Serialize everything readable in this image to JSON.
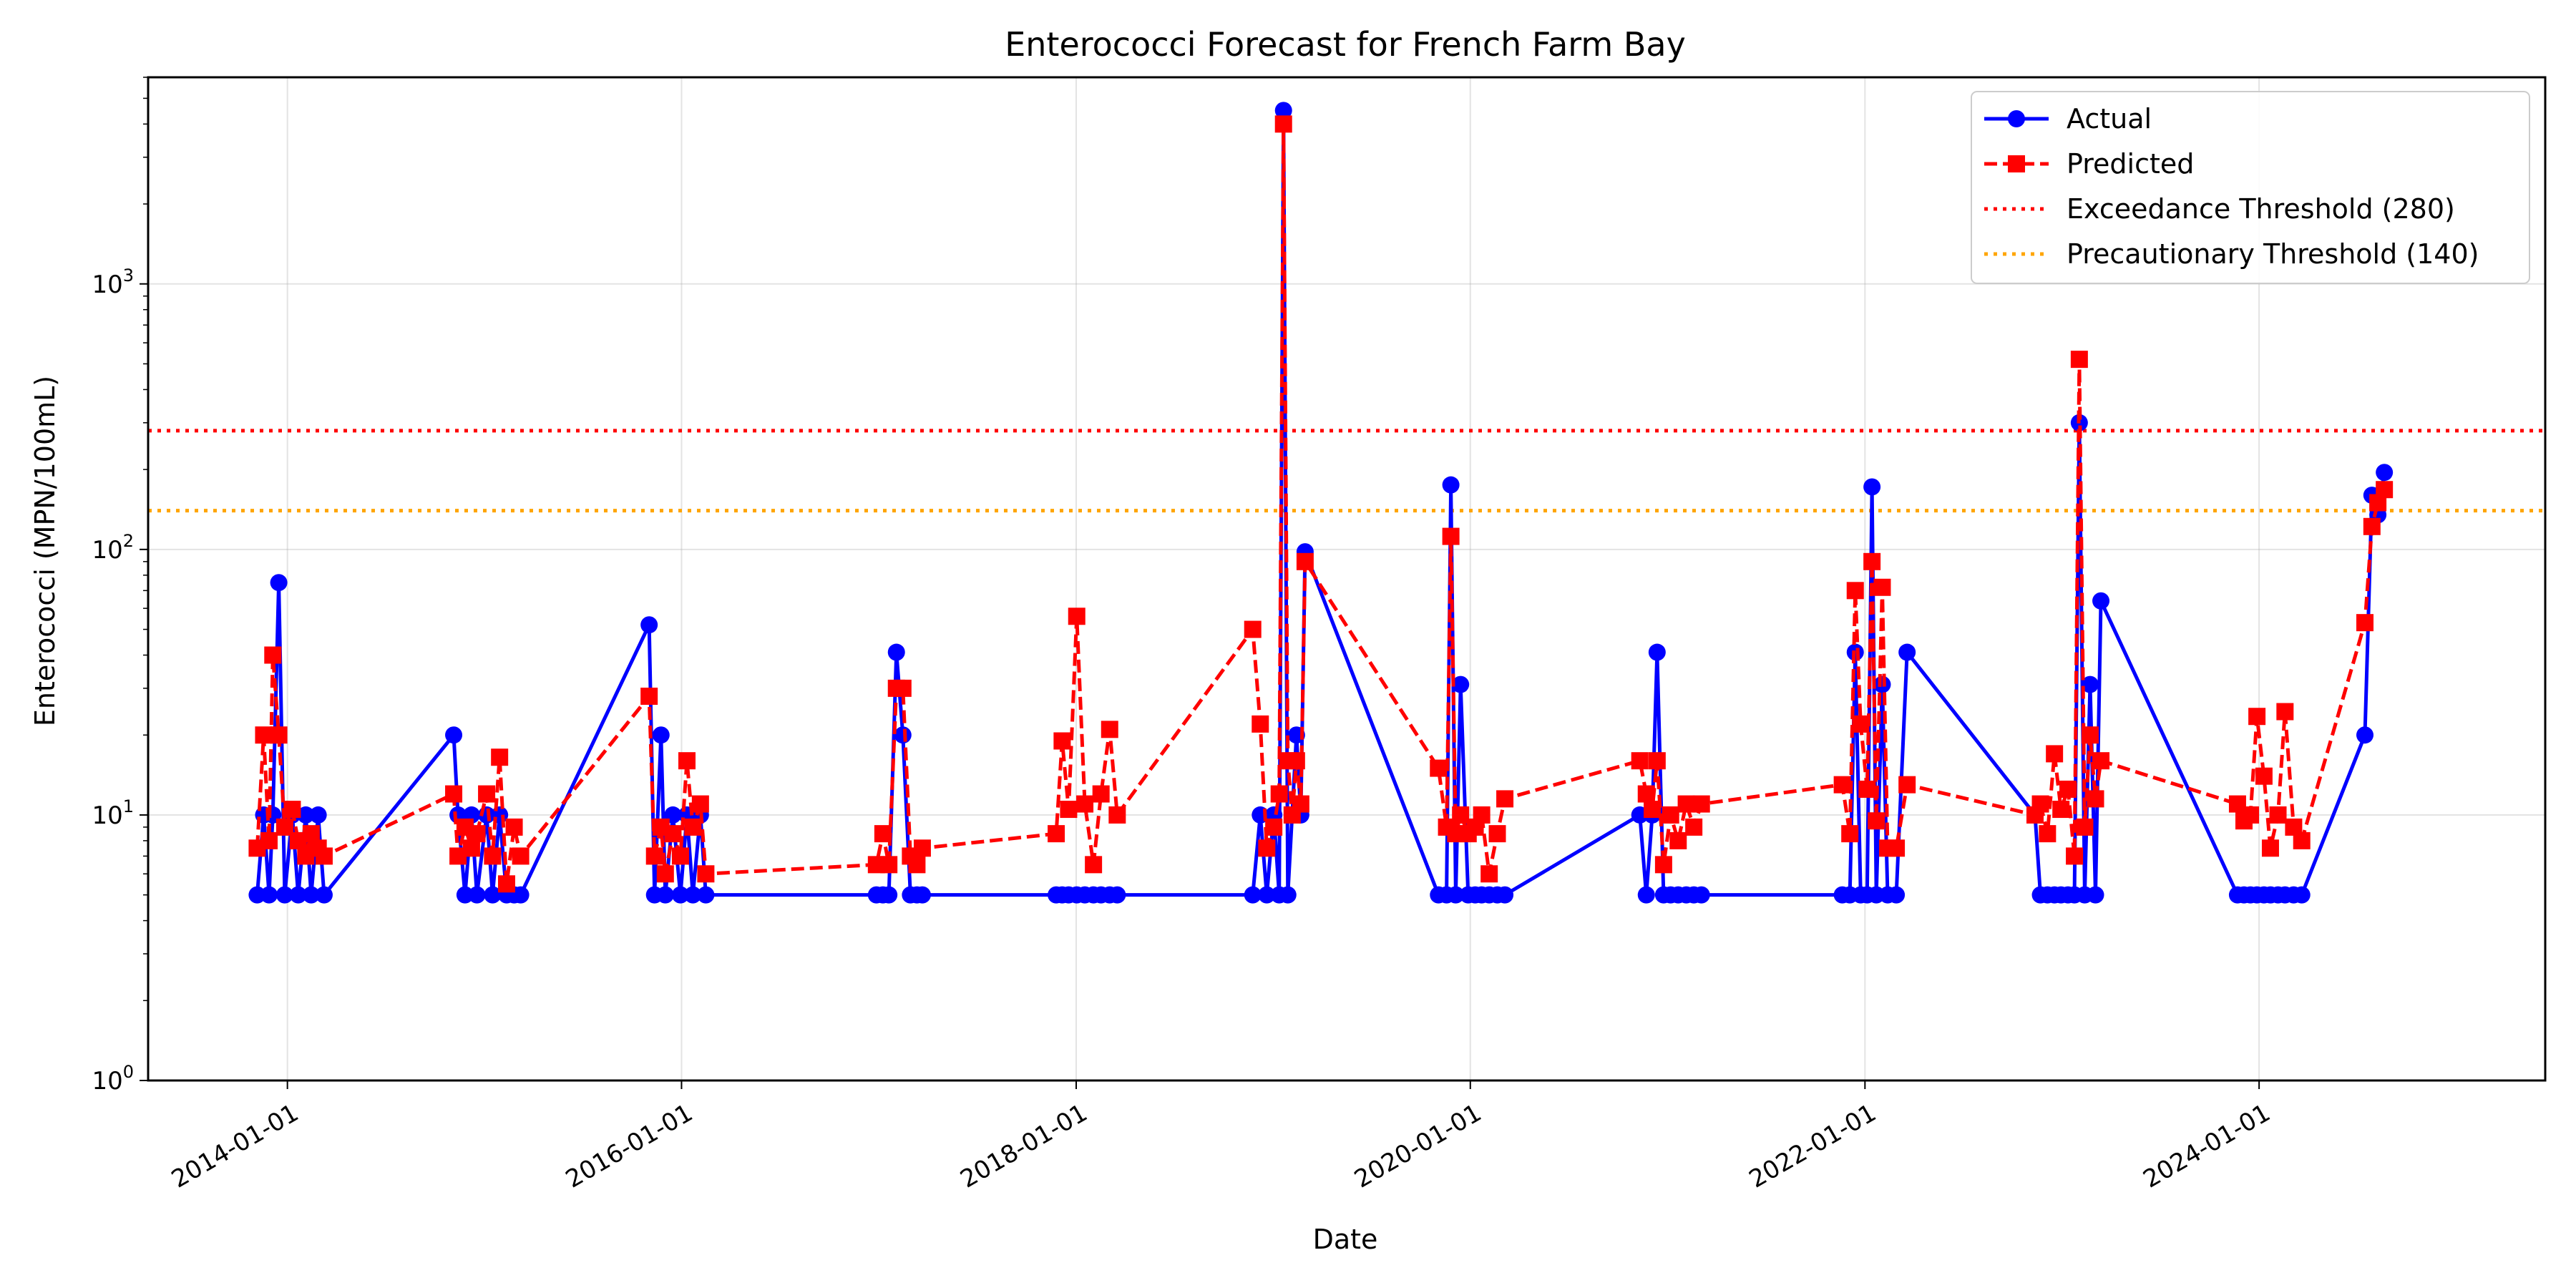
{
  "chart_data": {
    "type": "line",
    "title": "Enterococci Forecast for French Farm Bay",
    "xlabel": "Date",
    "ylabel": "Enterococci (MPN/100mL)",
    "yscale": "log",
    "ylim": [
      1,
      6000
    ],
    "xlim": [
      "2013-04-18",
      "2025-06-14"
    ],
    "grid": true,
    "legend_position": "upper right",
    "x_ticks": [
      "2014-01-01",
      "2016-01-01",
      "2018-01-01",
      "2020-01-01",
      "2022-01-01",
      "2024-01-01"
    ],
    "y_ticks": [
      {
        "value": 1,
        "base": "10",
        "exp": "0"
      },
      {
        "value": 10,
        "base": "10",
        "exp": "1"
      },
      {
        "value": 100,
        "base": "10",
        "exp": "2"
      },
      {
        "value": 1000,
        "base": "10",
        "exp": "3"
      }
    ],
    "thresholds": [
      {
        "name": "Exceedance Threshold (280)",
        "value": 280,
        "color": "#ff0000",
        "style": "dotted"
      },
      {
        "name": "Precautionary Threshold (140)",
        "value": 140,
        "color": "#ffa500",
        "style": "dotted"
      }
    ],
    "series": [
      {
        "name": "Actual",
        "color": "#0000ff",
        "marker": "circle",
        "line": "solid",
        "points": [
          [
            "2013-11-06",
            5
          ],
          [
            "2013-11-18",
            10
          ],
          [
            "2013-11-28",
            5
          ],
          [
            "2013-12-05",
            10
          ],
          [
            "2013-12-16",
            75
          ],
          [
            "2013-12-27",
            5
          ],
          [
            "2014-01-10",
            10
          ],
          [
            "2014-01-21",
            5
          ],
          [
            "2014-02-04",
            10
          ],
          [
            "2014-02-14",
            5
          ],
          [
            "2014-02-27",
            10
          ],
          [
            "2014-03-10",
            5
          ],
          [
            "2014-11-05",
            20
          ],
          [
            "2014-11-13",
            10
          ],
          [
            "2014-11-26",
            5
          ],
          [
            "2014-12-08",
            10
          ],
          [
            "2014-12-18",
            5
          ],
          [
            "2015-01-05",
            10
          ],
          [
            "2015-01-16",
            5
          ],
          [
            "2015-01-29",
            10
          ],
          [
            "2015-02-11",
            5
          ],
          [
            "2015-02-25",
            5
          ],
          [
            "2015-03-09",
            5
          ],
          [
            "2015-11-02",
            52
          ],
          [
            "2015-11-12",
            5
          ],
          [
            "2015-11-24",
            20
          ],
          [
            "2015-12-02",
            5
          ],
          [
            "2015-12-16",
            10
          ],
          [
            "2015-12-30",
            5
          ],
          [
            "2016-01-11",
            10
          ],
          [
            "2016-01-22",
            5
          ],
          [
            "2016-02-05",
            10
          ],
          [
            "2016-02-15",
            5
          ],
          [
            "2016-12-27",
            5
          ],
          [
            "2017-01-08",
            5
          ],
          [
            "2017-01-19",
            5
          ],
          [
            "2017-02-02",
            41
          ],
          [
            "2017-02-14",
            20
          ],
          [
            "2017-02-28",
            5
          ],
          [
            "2017-03-12",
            5
          ],
          [
            "2017-03-22",
            5
          ],
          [
            "2017-11-25",
            5
          ],
          [
            "2017-12-06",
            5
          ],
          [
            "2017-12-18",
            5
          ],
          [
            "2018-01-02",
            5
          ],
          [
            "2018-01-17",
            5
          ],
          [
            "2018-02-02",
            5
          ],
          [
            "2018-02-16",
            5
          ],
          [
            "2018-03-04",
            5
          ],
          [
            "2018-03-18",
            5
          ],
          [
            "2018-11-24",
            5
          ],
          [
            "2018-12-08",
            10
          ],
          [
            "2018-12-20",
            5
          ],
          [
            "2019-01-02",
            10
          ],
          [
            "2019-01-12",
            5
          ],
          [
            "2019-01-20",
            4500
          ],
          [
            "2019-01-28",
            5
          ],
          [
            "2019-02-05",
            10
          ],
          [
            "2019-02-13",
            20
          ],
          [
            "2019-02-21",
            10
          ],
          [
            "2019-03-01",
            98
          ],
          [
            "2019-11-03",
            5
          ],
          [
            "2019-11-18",
            5
          ],
          [
            "2019-11-26",
            175
          ],
          [
            "2019-12-05",
            5
          ],
          [
            "2019-12-14",
            31
          ],
          [
            "2019-12-28",
            5
          ],
          [
            "2020-01-10",
            5
          ],
          [
            "2020-01-22",
            5
          ],
          [
            "2020-02-05",
            5
          ],
          [
            "2020-02-20",
            5
          ],
          [
            "2020-03-05",
            5
          ],
          [
            "2020-11-10",
            10
          ],
          [
            "2020-11-22",
            5
          ],
          [
            "2020-12-03",
            10
          ],
          [
            "2020-12-12",
            41
          ],
          [
            "2020-12-24",
            5
          ],
          [
            "2021-01-06",
            5
          ],
          [
            "2021-01-20",
            5
          ],
          [
            "2021-02-04",
            5
          ],
          [
            "2021-02-18",
            5
          ],
          [
            "2021-03-04",
            5
          ],
          [
            "2021-11-20",
            5
          ],
          [
            "2021-12-04",
            5
          ],
          [
            "2021-12-14",
            41
          ],
          [
            "2021-12-24",
            5
          ],
          [
            "2022-01-05",
            5
          ],
          [
            "2022-01-14",
            172
          ],
          [
            "2022-01-22",
            5
          ],
          [
            "2022-02-02",
            31
          ],
          [
            "2022-02-12",
            5
          ],
          [
            "2022-02-28",
            5
          ],
          [
            "2022-03-20",
            41
          ],
          [
            "2022-11-12",
            10
          ],
          [
            "2022-11-22",
            5
          ],
          [
            "2022-12-05",
            5
          ],
          [
            "2022-12-18",
            5
          ],
          [
            "2022-12-30",
            5
          ],
          [
            "2023-01-12",
            5
          ],
          [
            "2023-01-24",
            5
          ],
          [
            "2023-02-02",
            300
          ],
          [
            "2023-02-12",
            5
          ],
          [
            "2023-02-22",
            31
          ],
          [
            "2023-03-04",
            5
          ],
          [
            "2023-03-14",
            64
          ],
          [
            "2023-11-22",
            5
          ],
          [
            "2023-12-04",
            5
          ],
          [
            "2023-12-16",
            5
          ],
          [
            "2023-12-28",
            5
          ],
          [
            "2024-01-10",
            5
          ],
          [
            "2024-01-22",
            5
          ],
          [
            "2024-02-05",
            5
          ],
          [
            "2024-02-18",
            5
          ],
          [
            "2024-03-05",
            5
          ],
          [
            "2024-03-20",
            5
          ],
          [
            "2024-07-15",
            20
          ],
          [
            "2024-07-28",
            160
          ],
          [
            "2024-08-08",
            135
          ],
          [
            "2024-08-20",
            195
          ]
        ]
      },
      {
        "name": "Predicted",
        "color": "#ff0000",
        "marker": "square",
        "line": "dashed",
        "points": [
          [
            "2013-11-06",
            7.5
          ],
          [
            "2013-11-18",
            20
          ],
          [
            "2013-11-28",
            8
          ],
          [
            "2013-12-05",
            40
          ],
          [
            "2013-12-16",
            20
          ],
          [
            "2013-12-27",
            9
          ],
          [
            "2014-01-10",
            10.5
          ],
          [
            "2014-01-21",
            8
          ],
          [
            "2014-02-04",
            7
          ],
          [
            "2014-02-14",
            8.5
          ],
          [
            "2014-02-27",
            7.5
          ],
          [
            "2014-03-10",
            7
          ],
          [
            "2014-11-05",
            12
          ],
          [
            "2014-11-13",
            7
          ],
          [
            "2014-11-26",
            9
          ],
          [
            "2014-12-08",
            7.5
          ],
          [
            "2014-12-18",
            8.5
          ],
          [
            "2015-01-05",
            12
          ],
          [
            "2015-01-16",
            7
          ],
          [
            "2015-01-29",
            16.5
          ],
          [
            "2015-02-11",
            5.5
          ],
          [
            "2015-02-25",
            9
          ],
          [
            "2015-03-09",
            7
          ],
          [
            "2015-11-02",
            28
          ],
          [
            "2015-11-12",
            7
          ],
          [
            "2015-11-24",
            9
          ],
          [
            "2015-12-02",
            6
          ],
          [
            "2015-12-16",
            8.5
          ],
          [
            "2015-12-30",
            7
          ],
          [
            "2016-01-11",
            16
          ],
          [
            "2016-01-22",
            9
          ],
          [
            "2016-02-05",
            11
          ],
          [
            "2016-02-15",
            6
          ],
          [
            "2016-12-27",
            6.5
          ],
          [
            "2017-01-08",
            8.5
          ],
          [
            "2017-01-19",
            6.5
          ],
          [
            "2017-02-02",
            30
          ],
          [
            "2017-02-14",
            30
          ],
          [
            "2017-02-28",
            7
          ],
          [
            "2017-03-12",
            6.5
          ],
          [
            "2017-03-22",
            7.5
          ],
          [
            "2017-11-25",
            8.5
          ],
          [
            "2017-12-06",
            19
          ],
          [
            "2017-12-18",
            10.5
          ],
          [
            "2018-01-02",
            56
          ],
          [
            "2018-01-17",
            11
          ],
          [
            "2018-02-02",
            6.5
          ],
          [
            "2018-02-16",
            12
          ],
          [
            "2018-03-04",
            21
          ],
          [
            "2018-03-18",
            10
          ],
          [
            "2018-11-24",
            50
          ],
          [
            "2018-12-08",
            22
          ],
          [
            "2018-12-20",
            7.5
          ],
          [
            "2019-01-02",
            9
          ],
          [
            "2019-01-12",
            12
          ],
          [
            "2019-01-20",
            4000
          ],
          [
            "2019-01-28",
            16
          ],
          [
            "2019-02-05",
            10
          ],
          [
            "2019-02-13",
            16
          ],
          [
            "2019-02-21",
            11
          ],
          [
            "2019-03-01",
            90
          ],
          [
            "2019-11-03",
            15
          ],
          [
            "2019-11-18",
            9
          ],
          [
            "2019-11-26",
            112
          ],
          [
            "2019-12-05",
            8.5
          ],
          [
            "2019-12-14",
            10
          ],
          [
            "2019-12-28",
            8.5
          ],
          [
            "2020-01-10",
            9
          ],
          [
            "2020-01-22",
            10
          ],
          [
            "2020-02-05",
            6
          ],
          [
            "2020-02-20",
            8.5
          ],
          [
            "2020-03-05",
            11.5
          ],
          [
            "2020-11-10",
            16
          ],
          [
            "2020-11-22",
            12
          ],
          [
            "2020-12-03",
            10.5
          ],
          [
            "2020-12-12",
            16
          ],
          [
            "2020-12-24",
            6.5
          ],
          [
            "2021-01-06",
            10
          ],
          [
            "2021-01-20",
            8
          ],
          [
            "2021-02-04",
            11
          ],
          [
            "2021-02-18",
            9
          ],
          [
            "2021-03-04",
            11
          ],
          [
            "2021-11-20",
            13
          ],
          [
            "2021-12-04",
            8.5
          ],
          [
            "2021-12-14",
            70
          ],
          [
            "2021-12-24",
            22
          ],
          [
            "2022-01-05",
            12.5
          ],
          [
            "2022-01-14",
            90
          ],
          [
            "2022-01-22",
            9.5
          ],
          [
            "2022-02-02",
            72
          ],
          [
            "2022-02-12",
            7.5
          ],
          [
            "2022-02-28",
            7.5
          ],
          [
            "2022-03-20",
            13
          ],
          [
            "2022-11-12",
            10
          ],
          [
            "2022-11-22",
            11
          ],
          [
            "2022-12-05",
            8.5
          ],
          [
            "2022-12-18",
            17
          ],
          [
            "2022-12-30",
            10.5
          ],
          [
            "2023-01-12",
            12.5
          ],
          [
            "2023-01-24",
            7
          ],
          [
            "2023-02-02",
            520
          ],
          [
            "2023-02-12",
            9
          ],
          [
            "2023-02-22",
            20
          ],
          [
            "2023-03-04",
            11.5
          ],
          [
            "2023-03-14",
            16
          ],
          [
            "2023-11-22",
            11
          ],
          [
            "2023-12-04",
            9.5
          ],
          [
            "2023-12-16",
            10
          ],
          [
            "2023-12-28",
            23.5
          ],
          [
            "2024-01-10",
            14
          ],
          [
            "2024-01-22",
            7.5
          ],
          [
            "2024-02-05",
            10
          ],
          [
            "2024-02-18",
            24.5
          ],
          [
            "2024-03-05",
            9
          ],
          [
            "2024-03-20",
            8
          ],
          [
            "2024-07-15",
            53
          ],
          [
            "2024-07-28",
            122
          ],
          [
            "2024-08-08",
            150
          ],
          [
            "2024-08-20",
            168
          ]
        ]
      }
    ]
  }
}
